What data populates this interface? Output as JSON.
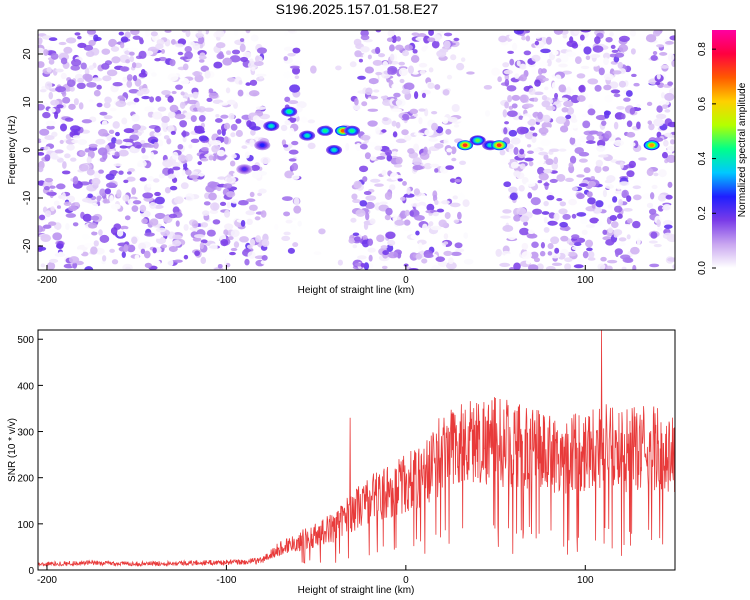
{
  "title": "S196.2025.157.01.58.E27",
  "chart_data": [
    {
      "type": "heatmap",
      "title": "S196.2025.157.01.58.E27",
      "xlabel": "Height of straight line (km)",
      "ylabel": "Frequency (Hz)",
      "xlim": [
        -205,
        150
      ],
      "ylim": [
        -25,
        25
      ],
      "xticks": [
        -200,
        -100,
        0,
        100
      ],
      "yticks": [
        -20,
        -10,
        0,
        10,
        20
      ],
      "colorbar": {
        "label": "Normalized spectral amplitude",
        "range": [
          0,
          0.87
        ],
        "ticks": [
          0,
          0.2,
          0.4,
          0.6,
          0.8
        ],
        "colors": [
          "#ffffff",
          "#c9a6f0",
          "#7a3ce8",
          "#1f1fff",
          "#00c8ff",
          "#00ff8a",
          "#b4ff00",
          "#ffd000",
          "#ff5a00",
          "#ff0040",
          "#ff00a0"
        ]
      },
      "blank_bands_km": [
        [
          -78,
          -68
        ],
        [
          -60,
          -30
        ],
        [
          30,
          55
        ],
        [
          130,
          135
        ]
      ],
      "hotspots": [
        {
          "x": -90,
          "y": -4,
          "amp": 0.25
        },
        {
          "x": -80,
          "y": 1,
          "amp": 0.3
        },
        {
          "x": -75,
          "y": 5,
          "amp": 0.45
        },
        {
          "x": -65,
          "y": 8,
          "amp": 0.5
        },
        {
          "x": -55,
          "y": 3,
          "amp": 0.45
        },
        {
          "x": -45,
          "y": 4,
          "amp": 0.5
        },
        {
          "x": -40,
          "y": 0,
          "amp": 0.45
        },
        {
          "x": -35,
          "y": 4,
          "amp": 0.8
        },
        {
          "x": -30,
          "y": 4,
          "amp": 0.5
        },
        {
          "x": 33,
          "y": 1,
          "amp": 0.85
        },
        {
          "x": 40,
          "y": 2,
          "amp": 0.55
        },
        {
          "x": 47,
          "y": 1,
          "amp": 0.45
        },
        {
          "x": 52,
          "y": 1,
          "amp": 0.85
        },
        {
          "x": 137,
          "y": 1,
          "amp": 0.75
        }
      ]
    },
    {
      "type": "line",
      "xlabel": "Height of straight line (km)",
      "ylabel": "SNR (10 * v/v)",
      "xlim": [
        -205,
        150
      ],
      "ylim": [
        0,
        520
      ],
      "xticks": [
        -200,
        -100,
        0,
        100
      ],
      "yticks": [
        0,
        100,
        200,
        300,
        400,
        500
      ],
      "color": "#e83a3a",
      "series": [
        {
          "x": [
            -205,
            -180,
            -150,
            -120,
            -90,
            -80,
            -70,
            -60,
            -50,
            -40,
            -30,
            -20,
            -10,
            0,
            10,
            20,
            30,
            40,
            50,
            60,
            70,
            80,
            90,
            100,
            110,
            120,
            130,
            140,
            150
          ],
          "values": [
            15,
            18,
            16,
            18,
            20,
            25,
            55,
            75,
            90,
            110,
            150,
            180,
            200,
            220,
            240,
            300,
            320,
            330,
            330,
            320,
            310,
            300,
            290,
            310,
            320,
            300,
            310,
            310,
            290
          ]
        }
      ],
      "spikes": [
        {
          "x": -31,
          "y": 330
        },
        {
          "x": 109,
          "y": 520
        }
      ]
    }
  ]
}
